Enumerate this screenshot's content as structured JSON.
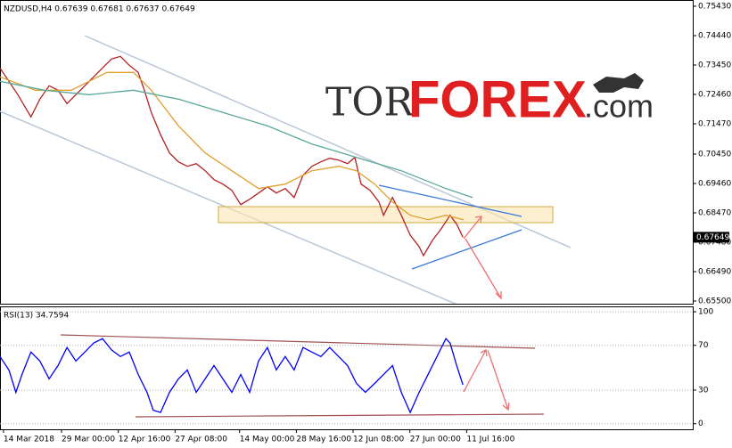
{
  "logo": {
    "prefix": "TOR",
    "main": "FOREX",
    "suffix": ".com"
  },
  "chart_data": [
    {
      "type": "line",
      "title": "NZDUSD,H4  0.67639 0.67681 0.67637 0.67649",
      "xlim": [
        -0.9,
        178.1
      ],
      "ylim": [
        0.6541,
        0.7561
      ],
      "yticks": [
        {
          "value": 0.7543,
          "label": "0.75430"
        },
        {
          "value": 0.7444,
          "label": "0.74440"
        },
        {
          "value": 0.7345,
          "label": "0.73450"
        },
        {
          "value": 0.7246,
          "label": "0.72460"
        },
        {
          "value": 0.7147,
          "label": "0.71470"
        },
        {
          "value": 0.7045,
          "label": "0.70450"
        },
        {
          "value": 0.6946,
          "label": "0.69460"
        },
        {
          "value": 0.6847,
          "label": "0.68470"
        },
        {
          "value": 0.6748,
          "label": "0.67480"
        },
        {
          "value": 0.6649,
          "label": "0.66490"
        },
        {
          "value": 0.655,
          "label": "0.65500"
        }
      ],
      "last_price": {
        "value": 0.67649,
        "label": "0.67649"
      },
      "series": [
        {
          "color": "#b22222",
          "x": [
            -0.9,
            1.4,
            3.7,
            7.1,
            9.4,
            11.8,
            14.1,
            16.4,
            18.7,
            21.0,
            23.3,
            25.6,
            27.9,
            30.2,
            32.5,
            34.8,
            36.4,
            38.2,
            40.6,
            42.9,
            45.2,
            47.5,
            49.8,
            52.1,
            54.4,
            56.7,
            59.0,
            61.3,
            63.6,
            65.9,
            68.2,
            70.5,
            72.8,
            75.1,
            77.4,
            79.7,
            82.0,
            84.3,
            86.6,
            88.9,
            90.8,
            92.4,
            94.7,
            97.0,
            98.2,
            100.5,
            102.8,
            105.1,
            107.4,
            108.5,
            110.8,
            113.1,
            115.4,
            117.1,
            118.7
          ],
          "values": [
            0.7335,
            0.729,
            0.7245,
            0.717,
            0.723,
            0.7275,
            0.726,
            0.7215,
            0.7245,
            0.7275,
            0.7305,
            0.7335,
            0.7365,
            0.7374,
            0.7344,
            0.732,
            0.726,
            0.7185,
            0.711,
            0.7049,
            0.7019,
            0.7004,
            0.7013,
            0.6989,
            0.6959,
            0.6944,
            0.6923,
            0.6875,
            0.6893,
            0.6914,
            0.6935,
            0.6914,
            0.6929,
            0.6899,
            0.6974,
            0.7004,
            0.7019,
            0.7031,
            0.7025,
            0.7013,
            0.7034,
            0.6944,
            0.6923,
            0.6884,
            0.6839,
            0.6899,
            0.6839,
            0.6772,
            0.6733,
            0.6703,
            0.6754,
            0.6793,
            0.6839,
            0.6809,
            0.6765
          ]
        },
        {
          "color": "#e0a030",
          "x": [
            -0.9,
            8.3,
            17.5,
            26.7,
            33.6,
            38.2,
            45.2,
            52.1,
            59.0,
            65.9,
            72.8,
            79.7,
            86.6,
            91.2,
            95.9,
            100.5,
            105.1,
            109.7,
            114.3,
            118.9
          ],
          "values": [
            0.7305,
            0.726,
            0.726,
            0.732,
            0.732,
            0.726,
            0.714,
            0.7049,
            0.6989,
            0.6929,
            0.6944,
            0.6989,
            0.7004,
            0.6989,
            0.6944,
            0.6884,
            0.6839,
            0.6824,
            0.6839,
            0.6824
          ]
        },
        {
          "color": "#5aa89a",
          "x": [
            -0.9,
            10.6,
            22.1,
            33.6,
            45.2,
            56.7,
            68.2,
            79.7,
            91.2,
            102.8,
            114.3,
            121.2
          ],
          "values": [
            0.729,
            0.726,
            0.7245,
            0.726,
            0.723,
            0.7185,
            0.714,
            0.7079,
            0.7034,
            0.6989,
            0.6929,
            0.6899
          ]
        }
      ]
    },
    {
      "type": "line",
      "title": "RSI(13) 34.7594",
      "xlim": [
        -0.9,
        178.1
      ],
      "ylim": [
        -5,
        104
      ],
      "yticks": [
        100,
        70,
        30,
        0
      ],
      "grid": true,
      "xticks": [
        {
          "value": 0,
          "label": "14 Mar 2018"
        },
        {
          "value": 15,
          "label": "29 Mar 00:00"
        },
        {
          "value": 29.67,
          "label": "12 Apr 16:00"
        },
        {
          "value": 44.33,
          "label": "27 Apr 08:00"
        },
        {
          "value": 61,
          "label": "14 May 00:00"
        },
        {
          "value": 75.67,
          "label": "28 May 16:00"
        },
        {
          "value": 90.33,
          "label": "12 Jun 08:00"
        },
        {
          "value": 105,
          "label": "27 Jun 00:00"
        },
        {
          "value": 119.67,
          "label": "11 Jul 16:00"
        }
      ],
      "series": [
        {
          "color": "#0000ff",
          "x": [
            -0.9,
            1.4,
            3.2,
            4.8,
            7.1,
            9.4,
            11.8,
            14.1,
            16.4,
            18.7,
            21.0,
            23.3,
            25.6,
            27.9,
            30.2,
            32.5,
            34.8,
            37.1,
            38.7,
            40.6,
            42.9,
            45.2,
            47.5,
            49.8,
            52.1,
            54.4,
            56.7,
            59.0,
            61.3,
            63.6,
            65.9,
            68.2,
            70.5,
            72.8,
            75.1,
            77.4,
            79.7,
            82.0,
            84.3,
            86.6,
            88.9,
            91.2,
            93.5,
            95.9,
            98.2,
            100.5,
            102.8,
            105.1,
            107.4,
            109.7,
            112.0,
            114.3,
            115.4,
            117.1,
            118.7
          ],
          "values": [
            60,
            48,
            28,
            44,
            64,
            56,
            40,
            52,
            68,
            56,
            64,
            72,
            76,
            66,
            60,
            64,
            44,
            28,
            12,
            10,
            28,
            40,
            48,
            28,
            40,
            52,
            40,
            28,
            44,
            28,
            56,
            68,
            48,
            60,
            48,
            68,
            64,
            60,
            68,
            60,
            52,
            36,
            28,
            36,
            44,
            52,
            28,
            10,
            28,
            44,
            60,
            76,
            72,
            52,
            34.7594
          ]
        }
      ]
    }
  ]
}
